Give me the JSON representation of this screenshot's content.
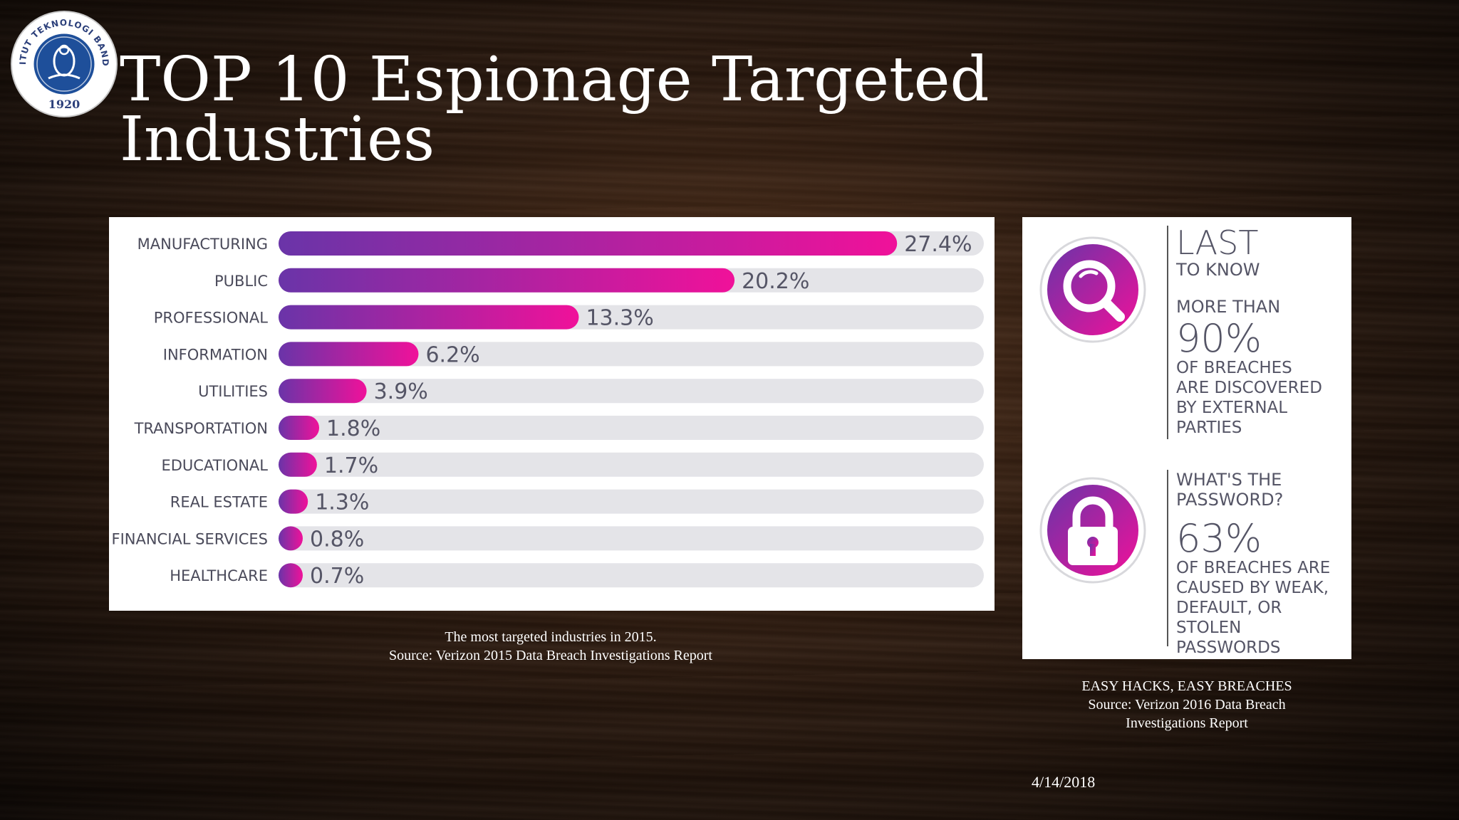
{
  "slide": {
    "title_line1": "TOP 10 Espionage Targeted",
    "title_line2": "Industries",
    "date": "4/14/2018"
  },
  "logo": {
    "text_top": "INSTITUT TEKNOLOGI BANDUNG",
    "year": "1920",
    "colors": {
      "ring": "#ffffff",
      "inner": "#1e4f9a",
      "text": "#2b3f7a"
    }
  },
  "chart_data": {
    "type": "bar",
    "orientation": "horizontal",
    "categories": [
      "MANUFACTURING",
      "PUBLIC",
      "PROFESSIONAL",
      "INFORMATION",
      "UTILITIES",
      "TRANSPORTATION",
      "EDUCATIONAL",
      "REAL ESTATE",
      "FINANCIAL SERVICES",
      "HEALTHCARE"
    ],
    "values": [
      27.4,
      20.2,
      13.3,
      6.2,
      3.9,
      1.8,
      1.7,
      1.3,
      0.8,
      0.7
    ],
    "value_labels": [
      "27.4%",
      "20.2%",
      "13.3%",
      "6.2%",
      "3.9%",
      "1.8%",
      "1.7%",
      "1.3%",
      "0.8%",
      "0.7%"
    ],
    "title": "",
    "xlabel": "",
    "ylabel": "",
    "xlim": [
      0,
      30
    ],
    "grid": false,
    "colors": {
      "bar_start": "#6a34a8",
      "bar_end": "#f0119a",
      "track": "#e4e4e8"
    }
  },
  "chart_caption": {
    "line1": "The most targeted industries in 2015.",
    "line2": "Source: Verizon 2015 Data Breach Investigations Report"
  },
  "infographic": {
    "block1": {
      "icon": "magnifier-icon",
      "headline": "LAST",
      "subhead": "TO KNOW",
      "lead": "MORE THAN",
      "stat": "90%",
      "desc": "OF BREACHES\nARE DISCOVERED\nBY EXTERNAL\nPARTIES"
    },
    "block2": {
      "icon": "padlock-icon",
      "question": "WHAT'S THE\nPASSWORD?",
      "stat": "63%",
      "desc": "OF  BREACHES ARE\nCAUSED BY WEAK,\nDEFAULT, OR STOLEN\nPASSWORDS"
    },
    "colors": {
      "icon_start": "#6a34a8",
      "icon_end": "#f0119a"
    }
  },
  "info_caption": {
    "line1": "EASY HACKS, EASY BREACHES",
    "line2": "Source: Verizon 2016 Data Breach",
    "line3": "Investigations Report"
  }
}
